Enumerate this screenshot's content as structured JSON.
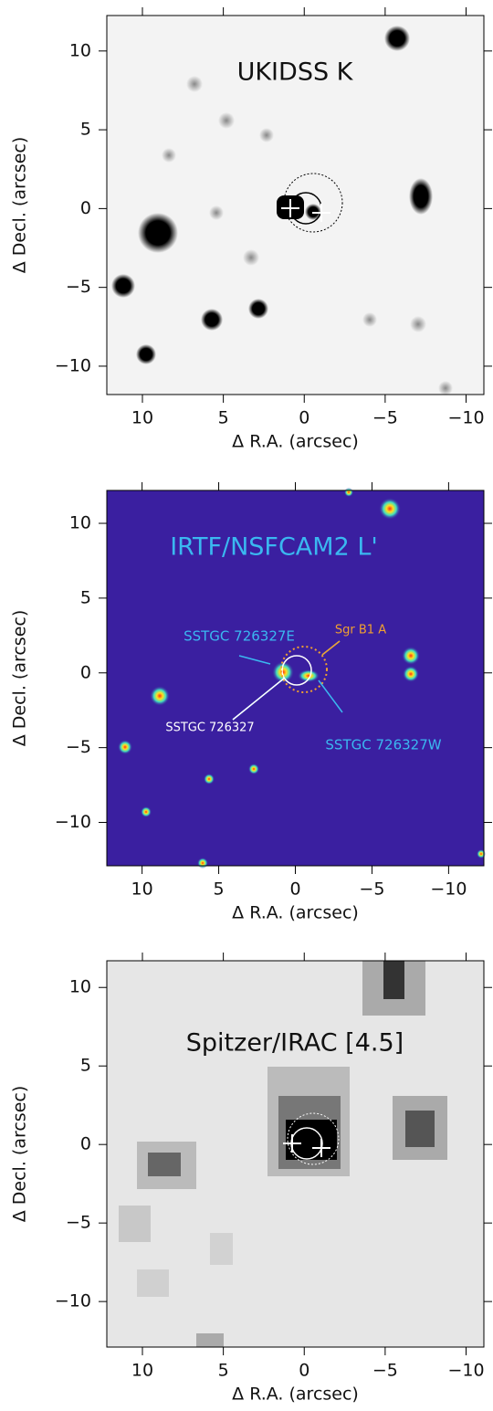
{
  "chart_data": [
    {
      "type": "image",
      "title": "UKIDSS K",
      "xlabel": "Δ R.A. (arcsec)",
      "ylabel": "Δ Decl. (arcsec)",
      "xlim": [
        12.2,
        -11.1
      ],
      "ylim": [
        -11.8,
        12.25
      ],
      "xticks": [
        10,
        5,
        0,
        {
          "value": -5,
          "label": "−5"
        },
        {
          "value": -10,
          "label": "−10"
        }
      ],
      "yticks": [
        {
          "value": -10,
          "label": "−10"
        },
        {
          "value": -5,
          "label": "−5"
        },
        0,
        5,
        10
      ]
    },
    {
      "type": "image",
      "title": "IRTF/NSFCAM2 L'",
      "xlabel": "Δ R.A. (arcsec)",
      "ylabel": "Δ Decl. (arcsec)",
      "xlim": [
        12.3,
        -12.3
      ],
      "ylim": [
        -12.9,
        12.2
      ],
      "xticks": [
        10,
        5,
        0,
        {
          "value": -5,
          "label": "−5"
        },
        {
          "value": -10,
          "label": "−10"
        }
      ],
      "yticks": [
        {
          "value": -10,
          "label": "−10"
        },
        {
          "value": -5,
          "label": "−5"
        },
        0,
        5,
        10
      ],
      "annotations": [
        "SSTGC 726327E",
        "Sgr B1 A",
        "SSTGC 726327",
        "SSTGC 726327W"
      ]
    },
    {
      "type": "image",
      "title": "Spitzer/IRAC [4.5]",
      "xlabel": "Δ R.A. (arcsec)",
      "ylabel": "Δ Decl. (arcsec)",
      "xlim": [
        12.2,
        -11.1
      ],
      "ylim": [
        -12.9,
        11.7
      ],
      "xticks": [
        10,
        5,
        0,
        {
          "value": -5,
          "label": "−5"
        },
        {
          "value": -10,
          "label": "−10"
        }
      ],
      "yticks": [
        {
          "value": -10,
          "label": "−10"
        },
        {
          "value": -5,
          "label": "−5"
        },
        0,
        5,
        10
      ]
    }
  ]
}
